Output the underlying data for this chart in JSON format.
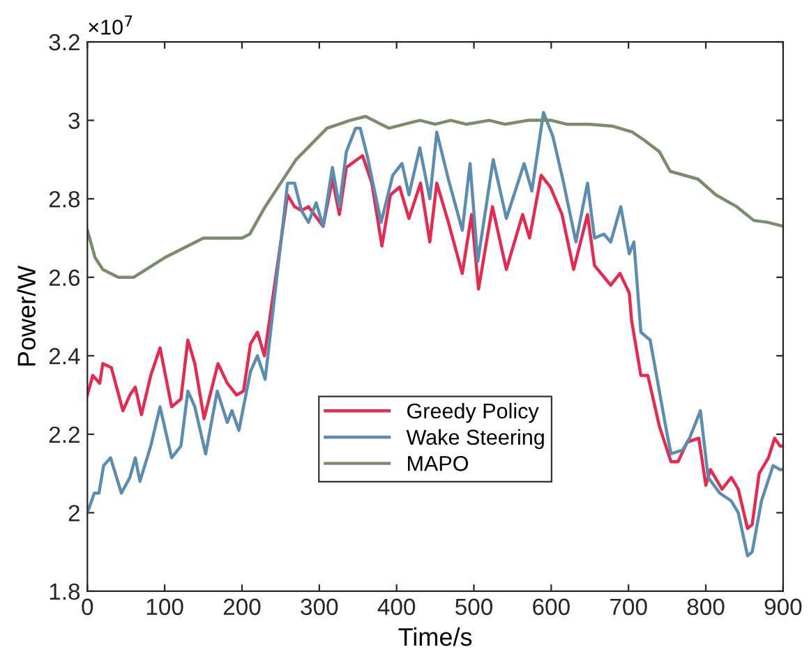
{
  "chart_data": {
    "type": "line",
    "xlabel": "Time/s",
    "ylabel": "Power/W",
    "annotations": [
      "×10$^{7}$"
    ],
    "xlim": [
      0,
      900
    ],
    "xticks": [
      0,
      100,
      200,
      300,
      400,
      500,
      600,
      700,
      800,
      900
    ],
    "ylim": [
      1.8,
      3.2
    ],
    "yticks": [
      1.8,
      2,
      2.2,
      2.4,
      2.6,
      2.8,
      3,
      3.2
    ],
    "legend": "bottom",
    "grid": false,
    "marker": "none",
    "line_style": "solid",
    "series": [
      {
        "name": "Greedy Policy",
        "color": "#e8294f",
        "x": [
          0,
          7,
          16,
          20,
          31,
          46,
          55,
          62,
          70,
          82,
          94,
          109,
          121,
          130,
          139,
          151,
          169,
          181,
          193,
          202,
          211,
          220,
          229,
          259,
          268,
          277,
          286,
          305,
          317,
          326,
          335,
          356,
          368,
          381,
          392,
          404,
          416,
          431,
          443,
          452,
          467,
          485,
          497,
          506,
          524,
          542,
          563,
          572,
          587,
          599,
          614,
          629,
          647,
          656,
          677,
          689,
          701,
          704,
          716,
          725,
          740,
          755,
          764,
          776,
          791,
          800,
          806,
          821,
          833,
          842,
          854,
          860,
          869,
          881,
          889,
          896,
          900
        ],
        "values": [
          2.3,
          2.35,
          2.33,
          2.38,
          2.37,
          2.26,
          2.3,
          2.32,
          2.25,
          2.35,
          2.42,
          2.27,
          2.29,
          2.44,
          2.38,
          2.24,
          2.38,
          2.33,
          2.3,
          2.31,
          2.43,
          2.46,
          2.4,
          2.81,
          2.78,
          2.77,
          2.78,
          2.73,
          2.85,
          2.76,
          2.88,
          2.91,
          2.84,
          2.68,
          2.81,
          2.83,
          2.75,
          2.84,
          2.69,
          2.84,
          2.74,
          2.61,
          2.76,
          2.57,
          2.78,
          2.62,
          2.76,
          2.7,
          2.86,
          2.83,
          2.76,
          2.62,
          2.76,
          2.63,
          2.58,
          2.61,
          2.56,
          2.49,
          2.35,
          2.35,
          2.22,
          2.13,
          2.13,
          2.18,
          2.19,
          2.07,
          2.11,
          2.06,
          2.09,
          2.06,
          1.96,
          1.97,
          2.1,
          2.14,
          2.19,
          2.17,
          2.17
        ]
      },
      {
        "name": "Wake Steering",
        "color": "#5b8db0",
        "x": [
          0,
          9,
          15,
          21,
          30,
          44,
          55,
          62,
          68,
          82,
          94,
          109,
          121,
          130,
          139,
          153,
          168,
          181,
          187,
          196,
          211,
          220,
          230,
          259,
          268,
          277,
          286,
          296,
          305,
          317,
          326,
          335,
          347,
          353,
          362,
          380,
          395,
          407,
          416,
          430,
          443,
          452,
          467,
          485,
          495,
          505,
          525,
          542,
          565,
          575,
          590,
          602,
          615,
          632,
          647,
          656,
          668,
          677,
          690,
          701,
          707,
          716,
          728,
          749,
          755,
          770,
          779,
          793,
          803,
          818,
          833,
          842,
          854,
          860,
          872,
          887,
          896,
          900
        ],
        "values": [
          2.0,
          2.05,
          2.05,
          2.12,
          2.14,
          2.05,
          2.09,
          2.14,
          2.08,
          2.17,
          2.27,
          2.14,
          2.17,
          2.31,
          2.27,
          2.15,
          2.31,
          2.23,
          2.26,
          2.21,
          2.36,
          2.4,
          2.34,
          2.84,
          2.84,
          2.77,
          2.74,
          2.79,
          2.73,
          2.88,
          2.78,
          2.92,
          2.98,
          2.98,
          2.91,
          2.74,
          2.86,
          2.89,
          2.81,
          2.93,
          2.8,
          2.97,
          2.85,
          2.72,
          2.89,
          2.64,
          2.9,
          2.75,
          2.89,
          2.82,
          3.02,
          2.96,
          2.85,
          2.69,
          2.84,
          2.7,
          2.71,
          2.69,
          2.78,
          2.66,
          2.69,
          2.46,
          2.44,
          2.21,
          2.15,
          2.16,
          2.19,
          2.26,
          2.09,
          2.05,
          2.03,
          2.0,
          1.89,
          1.9,
          2.03,
          2.12,
          2.11,
          2.11
        ]
      },
      {
        "name": "MAPO",
        "color": "#7a8c6b",
        "x": [
          0,
          10,
          20,
          40,
          60,
          100,
          150,
          200,
          210,
          230,
          250,
          270,
          290,
          310,
          340,
          360,
          380,
          390,
          410,
          430,
          450,
          470,
          490,
          520,
          540,
          570,
          600,
          620,
          650,
          680,
          705,
          720,
          740,
          754,
          790,
          813,
          840,
          862,
          880,
          900
        ],
        "values": [
          2.72,
          2.65,
          2.62,
          2.6,
          2.6,
          2.65,
          2.7,
          2.7,
          2.71,
          2.78,
          2.84,
          2.9,
          2.94,
          2.98,
          3.0,
          3.01,
          2.99,
          2.98,
          2.99,
          3.0,
          2.99,
          3.0,
          2.99,
          3.0,
          2.99,
          3.0,
          3.0,
          2.99,
          2.99,
          2.985,
          2.97,
          2.95,
          2.92,
          2.87,
          2.85,
          2.81,
          2.78,
          2.745,
          2.74,
          2.73
        ]
      }
    ]
  }
}
